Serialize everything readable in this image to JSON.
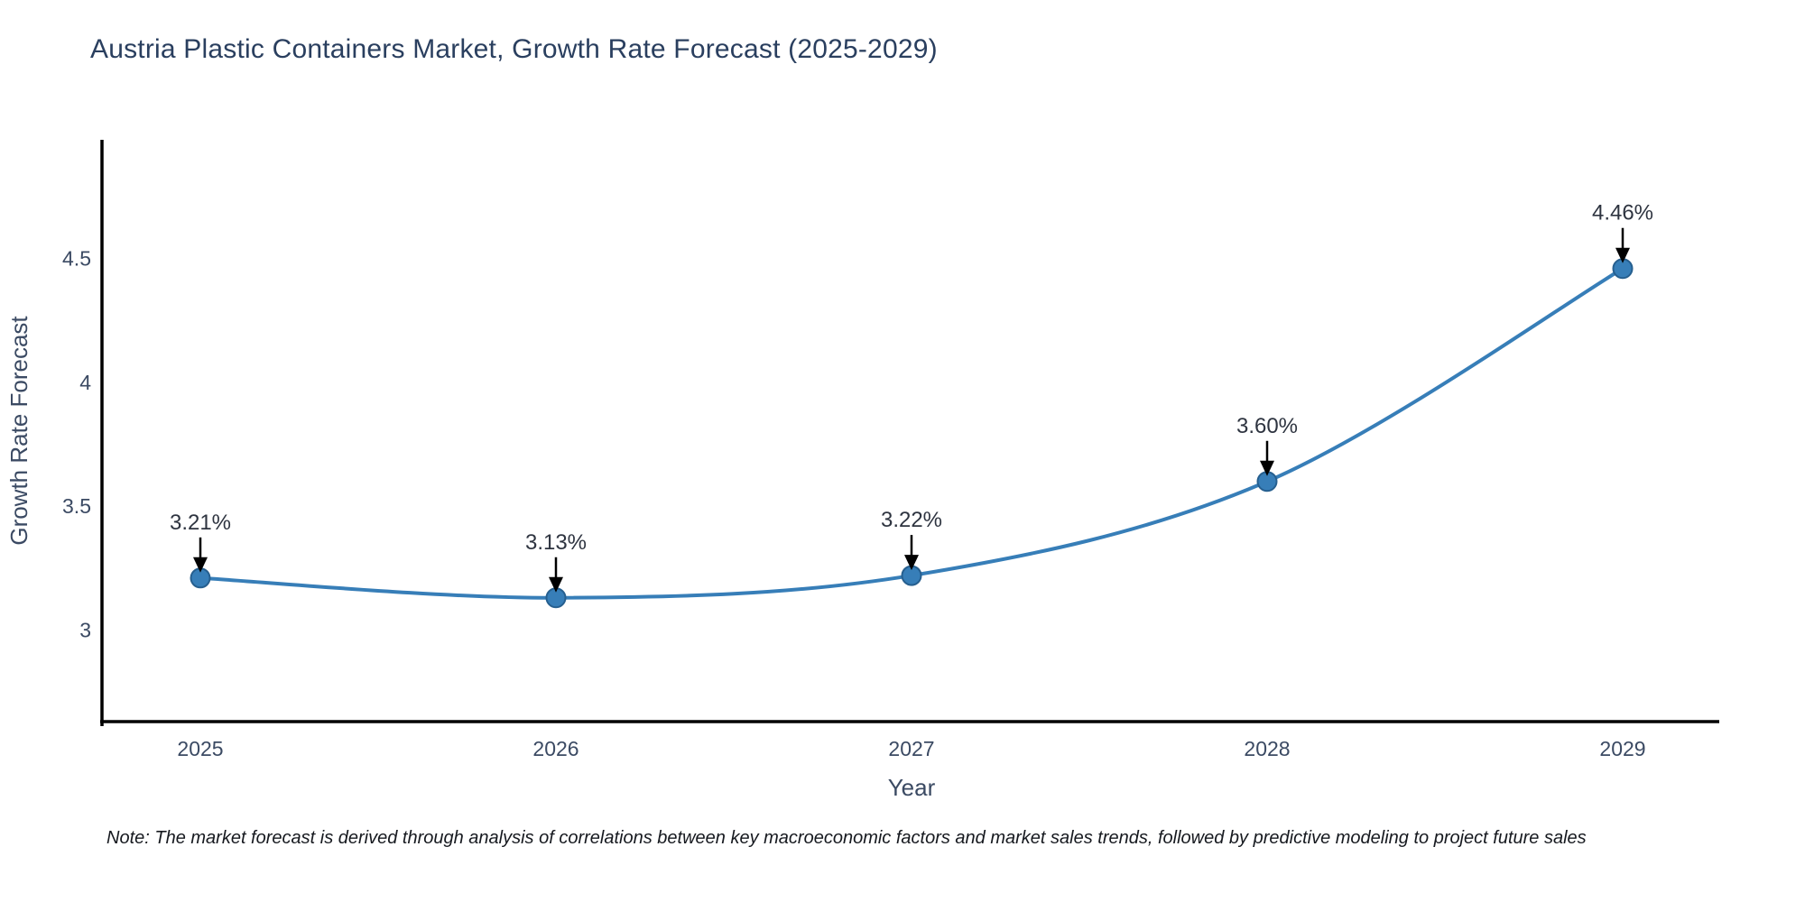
{
  "title": "Austria Plastic Containers Market, Growth Rate Forecast (2025-2029)",
  "note": "Note: The market forecast is derived through analysis of correlations between key macroeconomic factors and market sales trends, followed by predictive modeling to project future sales",
  "chart_data": {
    "type": "line",
    "title": "Austria Plastic Containers Market, Growth Rate Forecast (2025-2029)",
    "categories": [
      "2025",
      "2026",
      "2027",
      "2028",
      "2029"
    ],
    "series": [
      {
        "name": "Growth Rate Forecast",
        "values": [
          3.21,
          3.13,
          3.22,
          3.6,
          4.46
        ]
      }
    ],
    "point_labels": [
      "3.21%",
      "3.13%",
      "3.22%",
      "3.60%",
      "4.46%"
    ],
    "xlabel": "Year",
    "ylabel": "Growth Rate Forecast",
    "ytick_values": [
      3,
      3.5,
      4,
      4.5
    ],
    "ytick_labels": [
      "3",
      "3.5",
      "4",
      "4.5"
    ],
    "ylim": [
      2.63,
      4.98
    ],
    "grid": false,
    "legend_position": "none",
    "smooth": true,
    "colors": {
      "line": "#377eb8",
      "marker_fill": "#377eb8",
      "marker_edge": "#265f8f",
      "annotation_text": "#2e3440",
      "arrow": "#000000",
      "axis_spine": "#000000",
      "tick_label": "#3b4a63",
      "axis_title": "#3b4a63",
      "title_text": "#2a3f5f"
    }
  }
}
